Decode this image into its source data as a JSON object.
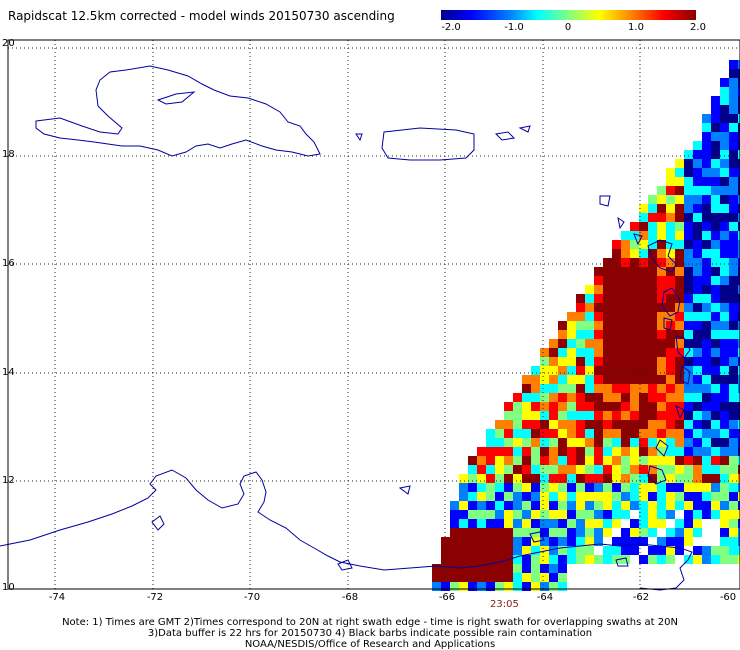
{
  "title": "Rapidscat 12.5km corrected - model winds 20150730 ascending",
  "colorbar": {
    "ticks": [
      "-2.0",
      "-1.0",
      "0",
      "1.0",
      "2.0"
    ],
    "colors": [
      "#00008b",
      "#0000ff",
      "#0080ff",
      "#00ffff",
      "#80ff80",
      "#ffff00",
      "#ff8000",
      "#ff0000",
      "#8b0000"
    ]
  },
  "axes": {
    "lat_labels": [
      "20",
      "18",
      "16",
      "14",
      "12",
      "10"
    ],
    "lon_labels": [
      "-74",
      "-72",
      "-70",
      "-68",
      "-66",
      "-64",
      "-62",
      "-60"
    ]
  },
  "swath_time": "23:05",
  "notes": [
    "Note: 1) Times are GMT 2)Times correspond to 20N at right swath edge - time is right swath for overlapping swaths at 20N",
    "3)Data buffer is 22 hrs for 20150730 4) Black barbs indicate possible rain contamination",
    "NOAA/NESDIS/Office of Research and Applications"
  ]
}
